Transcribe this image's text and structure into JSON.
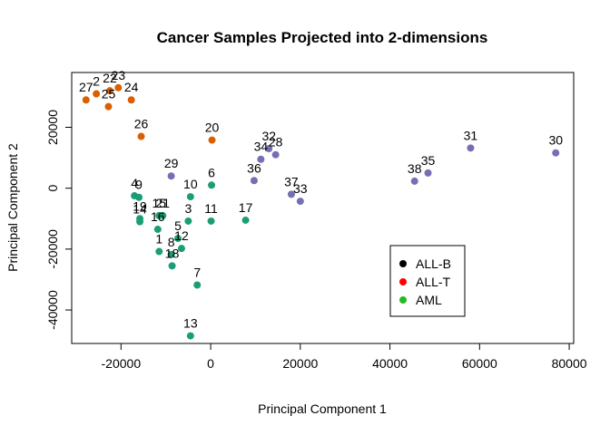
{
  "chart_data": {
    "type": "scatter",
    "title": "Cancer Samples Projected into 2-dimensions",
    "xlabel": "Principal Component 1",
    "ylabel": "Principal Component 2",
    "xlim": [
      -31000,
      81000
    ],
    "ylim": [
      -51000,
      38000
    ],
    "x_ticks": [
      -20000,
      0,
      20000,
      40000,
      60000,
      80000
    ],
    "y_ticks": [
      -40000,
      -20000,
      0,
      20000
    ],
    "grid": false,
    "legend_position": "bottom-right",
    "legend": [
      {
        "name": "ALL-B",
        "color": "#000000"
      },
      {
        "name": "ALL-T",
        "color": "#ff0000"
      },
      {
        "name": "AML",
        "color": "#22bb22"
      }
    ],
    "point_colors": {
      "orange": "#d95f02",
      "green": "#1b9e77",
      "purple": "#7570b3"
    },
    "points": [
      {
        "label": "1",
        "x": -11500,
        "y": -20800,
        "color": "green"
      },
      {
        "label": "2",
        "x": -25500,
        "y": 31000,
        "color": "orange"
      },
      {
        "label": "3",
        "x": -5000,
        "y": -10800,
        "color": "green"
      },
      {
        "label": "4",
        "x": -17000,
        "y": -2500,
        "color": "green"
      },
      {
        "label": "5",
        "x": -7300,
        "y": -16500,
        "color": "green"
      },
      {
        "label": "6",
        "x": 200,
        "y": 1000,
        "color": "green"
      },
      {
        "label": "7",
        "x": -3000,
        "y": -31800,
        "color": "green"
      },
      {
        "label": "8",
        "x": -8800,
        "y": -21800,
        "color": "green"
      },
      {
        "label": "9",
        "x": -16000,
        "y": -3000,
        "color": "green"
      },
      {
        "label": "10",
        "x": -4500,
        "y": -2800,
        "color": "green"
      },
      {
        "label": "11",
        "x": 100,
        "y": -10800,
        "color": "green"
      },
      {
        "label": "12",
        "x": -6500,
        "y": -19800,
        "color": "green"
      },
      {
        "label": "13",
        "x": -4500,
        "y": -48500,
        "color": "green"
      },
      {
        "label": "14",
        "x": -15800,
        "y": -11000,
        "color": "green"
      },
      {
        "label": "15",
        "x": -11500,
        "y": -9000,
        "color": "green"
      },
      {
        "label": "16",
        "x": -11800,
        "y": -13500,
        "color": "green"
      },
      {
        "label": "17",
        "x": 7800,
        "y": -10500,
        "color": "green"
      },
      {
        "label": "18",
        "x": -8600,
        "y": -25500,
        "color": "green"
      },
      {
        "label": "19",
        "x": -15800,
        "y": -10000,
        "color": "green"
      },
      {
        "label": "20",
        "x": 300,
        "y": 15800,
        "color": "orange"
      },
      {
        "label": "21",
        "x": -10700,
        "y": -9000,
        "color": "green"
      },
      {
        "label": "22",
        "x": -22500,
        "y": 32000,
        "color": "orange"
      },
      {
        "label": "23",
        "x": -20600,
        "y": 33000,
        "color": "orange"
      },
      {
        "label": "24",
        "x": -17700,
        "y": 29000,
        "color": "orange"
      },
      {
        "label": "25",
        "x": -22800,
        "y": 26800,
        "color": "orange"
      },
      {
        "label": "26",
        "x": -15500,
        "y": 17000,
        "color": "orange"
      },
      {
        "label": "27",
        "x": -27800,
        "y": 29000,
        "color": "orange"
      },
      {
        "label": "28",
        "x": 14500,
        "y": 11000,
        "color": "purple"
      },
      {
        "label": "29",
        "x": -8800,
        "y": 4000,
        "color": "purple"
      },
      {
        "label": "30",
        "x": 77000,
        "y": 11600,
        "color": "purple"
      },
      {
        "label": "31",
        "x": 58000,
        "y": 13200,
        "color": "purple"
      },
      {
        "label": "32",
        "x": 13000,
        "y": 13000,
        "color": "purple"
      },
      {
        "label": "33",
        "x": 20000,
        "y": -4300,
        "color": "purple"
      },
      {
        "label": "34",
        "x": 11200,
        "y": 9500,
        "color": "purple"
      },
      {
        "label": "35",
        "x": 48500,
        "y": 5000,
        "color": "purple"
      },
      {
        "label": "36",
        "x": 9700,
        "y": 2500,
        "color": "purple"
      },
      {
        "label": "37",
        "x": 18000,
        "y": -2000,
        "color": "purple"
      },
      {
        "label": "38",
        "x": 45500,
        "y": 2300,
        "color": "purple"
      }
    ]
  }
}
